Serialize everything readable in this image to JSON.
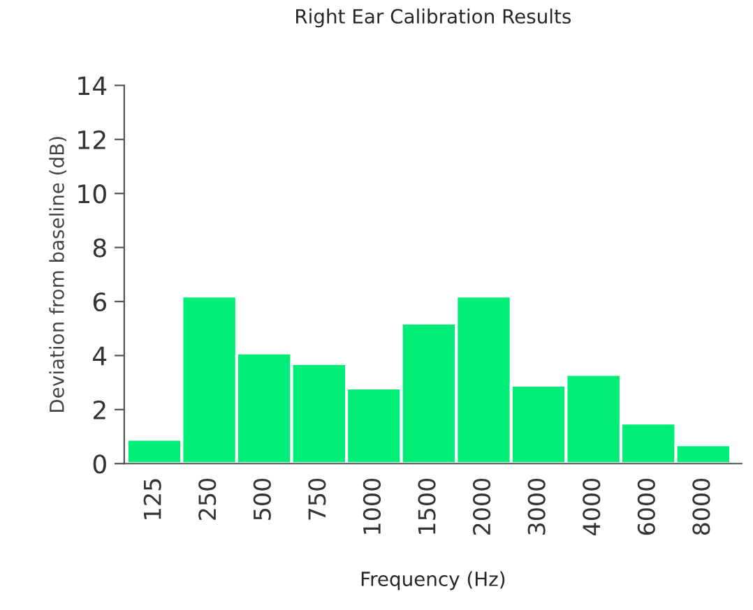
{
  "chart_data": {
    "type": "bar",
    "title": "Right Ear Calibration Results",
    "xlabel": "Frequency (Hz)",
    "ylabel": "Deviation from baseline (dB)",
    "categories": [
      "125",
      "250",
      "500",
      "750",
      "1000",
      "1500",
      "2000",
      "3000",
      "4000",
      "6000",
      "8000"
    ],
    "values": [
      0.9,
      6.2,
      4.1,
      3.7,
      2.8,
      5.2,
      6.2,
      2.9,
      3.3,
      1.5,
      0.7
    ],
    "color": "#00ee77",
    "ylim": [
      0,
      14
    ],
    "yticks": [
      0,
      2,
      4,
      6,
      8,
      10,
      12,
      14
    ],
    "grid": false,
    "legend": false
  }
}
